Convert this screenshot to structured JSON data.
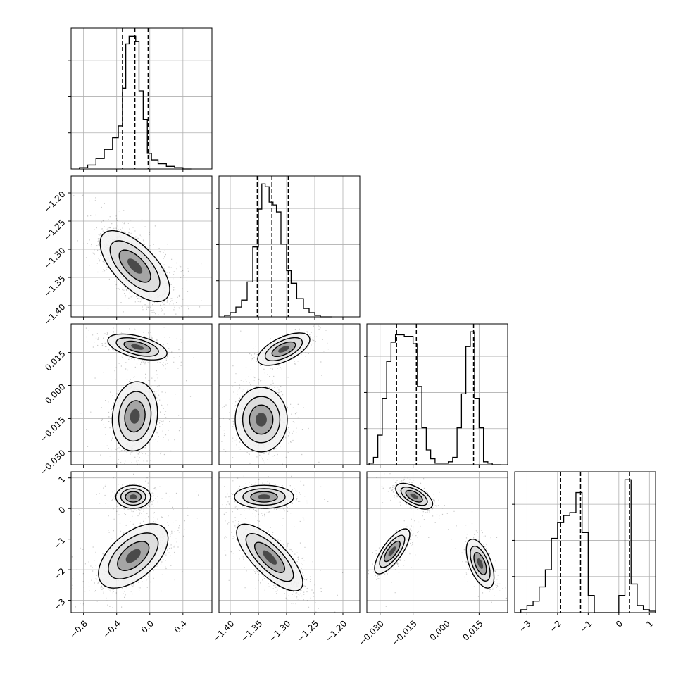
{
  "chart_data": [
    {
      "panel": "p0-hist",
      "type": "histogram",
      "variable": "param_0",
      "xlim": [
        -0.95,
        0.75
      ],
      "xticks": [
        "-0.8",
        "-0.4",
        "0.0",
        "0.4"
      ],
      "bin_edges": [
        -0.85,
        -0.75,
        -0.65,
        -0.55,
        -0.45,
        -0.38,
        -0.33,
        -0.29,
        -0.25,
        -0.21,
        -0.17,
        -0.13,
        -0.08,
        -0.03,
        0.02,
        0.1,
        0.2,
        0.3,
        0.4,
        0.5
      ],
      "counts": [
        1,
        3,
        8,
        15,
        24,
        33,
        62,
        96,
        102,
        102,
        98,
        60,
        38,
        12,
        7,
        4,
        2,
        1,
        0
      ],
      "quantiles": [
        -0.33,
        -0.18,
        -0.02
      ]
    },
    {
      "panel": "p1-hist",
      "type": "histogram",
      "variable": "param_1",
      "xlim": [
        -1.42,
        -1.17
      ],
      "xticks": [
        "-1.40",
        "-1.35",
        "-1.30",
        "-1.25",
        "-1.20"
      ],
      "bin_edges": [
        -1.41,
        -1.4,
        -1.39,
        -1.38,
        -1.37,
        -1.36,
        -1.35,
        -1.344,
        -1.338,
        -1.331,
        -1.324,
        -1.318,
        -1.31,
        -1.3,
        -1.292,
        -1.282,
        -1.27,
        -1.26,
        -1.25,
        -1.24,
        -1.22
      ],
      "counts": [
        1,
        3,
        7,
        12,
        25,
        50,
        77,
        95,
        93,
        82,
        80,
        75,
        52,
        33,
        24,
        13,
        6,
        3,
        1,
        0
      ],
      "quantiles": [
        -1.352,
        -1.326,
        -1.297
      ]
    },
    {
      "panel": "p2-hist",
      "type": "histogram",
      "variable": "param_2",
      "xlim": [
        -0.036,
        0.028
      ],
      "xticks": [
        "-0.030",
        "-0.015",
        "0.000",
        "0.015"
      ],
      "bin_edges": [
        -0.035,
        -0.033,
        -0.031,
        -0.029,
        -0.027,
        -0.025,
        -0.023,
        -0.021,
        -0.019,
        -0.017,
        -0.015,
        -0.013,
        -0.011,
        -0.009,
        -0.007,
        -0.005,
        -0.003,
        -0.001,
        0.001,
        0.003,
        0.005,
        0.007,
        0.009,
        0.011,
        0.013,
        0.015,
        0.017,
        0.019,
        0.021,
        0.023,
        0.025
      ],
      "counts": [
        1,
        5,
        20,
        45,
        70,
        83,
        88,
        88,
        87,
        87,
        82,
        53,
        25,
        10,
        4,
        1,
        1,
        1,
        2,
        5,
        25,
        48,
        80,
        90,
        45,
        25,
        2,
        1,
        0,
        0
      ],
      "quantiles": [
        -0.0225,
        -0.0135,
        0.0125
      ]
    },
    {
      "panel": "p3-hist",
      "type": "histogram",
      "variable": "param_3",
      "xlim": [
        -3.4,
        1.2
      ],
      "xticks": [
        "-3",
        "-2",
        "-1",
        "0",
        "1"
      ],
      "bin_edges": [
        -3.4,
        -3.2,
        -3.0,
        -2.8,
        -2.6,
        -2.4,
        -2.2,
        -2.0,
        -1.8,
        -1.6,
        -1.4,
        -1.2,
        -1.0,
        -0.8,
        -0.6,
        -0.4,
        -0.2,
        0.0,
        0.2,
        0.4,
        0.6,
        0.8,
        1.0,
        1.2
      ],
      "counts": [
        0,
        2,
        5,
        8,
        18,
        30,
        52,
        63,
        68,
        70,
        84,
        56,
        12,
        0,
        0,
        0,
        0,
        12,
        93,
        20,
        5,
        2,
        1
      ],
      "quantiles": [
        -1.9,
        -1.25,
        0.35
      ]
    },
    {
      "panel": "p1-vs-p0",
      "type": "scatter",
      "x": "param_0",
      "y": "param_1",
      "xlim": [
        -0.95,
        0.75
      ],
      "ylim": [
        -1.42,
        -1.17
      ],
      "yticks": [
        "-1.20",
        "-1.25",
        "-1.30",
        "-1.35",
        "-1.40"
      ],
      "clusters": [
        {
          "cx": -0.18,
          "cy": -1.33,
          "sx": 0.2,
          "sy": 0.03,
          "rho": -0.65,
          "w": 1.0
        }
      ]
    },
    {
      "panel": "p2-vs-p0",
      "type": "scatter",
      "x": "param_0",
      "y": "param_2",
      "xlim": [
        -0.95,
        0.75
      ],
      "ylim": [
        -0.036,
        0.028
      ],
      "yticks": [
        "0.015",
        "0.000",
        "-0.015",
        "-0.030"
      ],
      "clusters": [
        {
          "cx": -0.15,
          "cy": 0.0175,
          "sx": 0.17,
          "sy": 0.0028,
          "rho": -0.5,
          "w": 0.35
        },
        {
          "cx": -0.18,
          "cy": -0.014,
          "sx": 0.13,
          "sy": 0.0075,
          "rho": 0.1,
          "w": 0.65
        }
      ]
    },
    {
      "panel": "p2-vs-p1",
      "type": "scatter",
      "x": "param_1",
      "y": "param_2",
      "xlim": [
        -1.42,
        -1.17
      ],
      "ylim": [
        -0.036,
        0.028
      ],
      "clusters": [
        {
          "cx": -1.305,
          "cy": 0.0165,
          "sx": 0.022,
          "sy": 0.0035,
          "rho": 0.6,
          "w": 0.35
        },
        {
          "cx": -1.345,
          "cy": -0.0155,
          "sx": 0.022,
          "sy": 0.007,
          "rho": 0.0,
          "w": 0.65
        }
      ]
    },
    {
      "panel": "p3-vs-p0",
      "type": "scatter",
      "x": "param_0",
      "y": "param_3",
      "xlim": [
        -0.95,
        0.75
      ],
      "ylim": [
        -3.4,
        1.2
      ],
      "yticks": [
        "1",
        "0",
        "-1",
        "-2",
        "-3"
      ],
      "clusters": [
        {
          "cx": -0.2,
          "cy": 0.38,
          "sx": 0.1,
          "sy": 0.18,
          "rho": 0.0,
          "w": 0.35
        },
        {
          "cx": -0.2,
          "cy": -1.55,
          "sx": 0.2,
          "sy": 0.5,
          "rho": 0.55,
          "w": 0.65
        }
      ]
    },
    {
      "panel": "p3-vs-p1",
      "type": "scatter",
      "x": "param_1",
      "y": "param_3",
      "xlim": [
        -1.42,
        -1.17
      ],
      "ylim": [
        -3.4,
        1.2
      ],
      "clusters": [
        {
          "cx": -1.34,
          "cy": 0.38,
          "sx": 0.025,
          "sy": 0.18,
          "rho": 0.0,
          "w": 0.35
        },
        {
          "cx": -1.33,
          "cy": -1.6,
          "sx": 0.028,
          "sy": 0.52,
          "rho": -0.75,
          "w": 0.65
        }
      ]
    },
    {
      "panel": "p3-vs-p2",
      "type": "scatter",
      "x": "param_2",
      "y": "param_3",
      "xlim": [
        -0.036,
        0.028
      ],
      "ylim": [
        -3.4,
        1.2
      ],
      "clusters": [
        {
          "cx": -0.0145,
          "cy": 0.4,
          "sx": 0.004,
          "sy": 0.2,
          "rho": -0.6,
          "w": 0.35
        },
        {
          "cx": -0.0245,
          "cy": -1.4,
          "sx": 0.0038,
          "sy": 0.35,
          "rho": 0.75,
          "w": 0.32
        },
        {
          "cx": 0.0155,
          "cy": -1.8,
          "sx": 0.003,
          "sy": 0.38,
          "rho": -0.55,
          "w": 0.33
        }
      ]
    }
  ]
}
